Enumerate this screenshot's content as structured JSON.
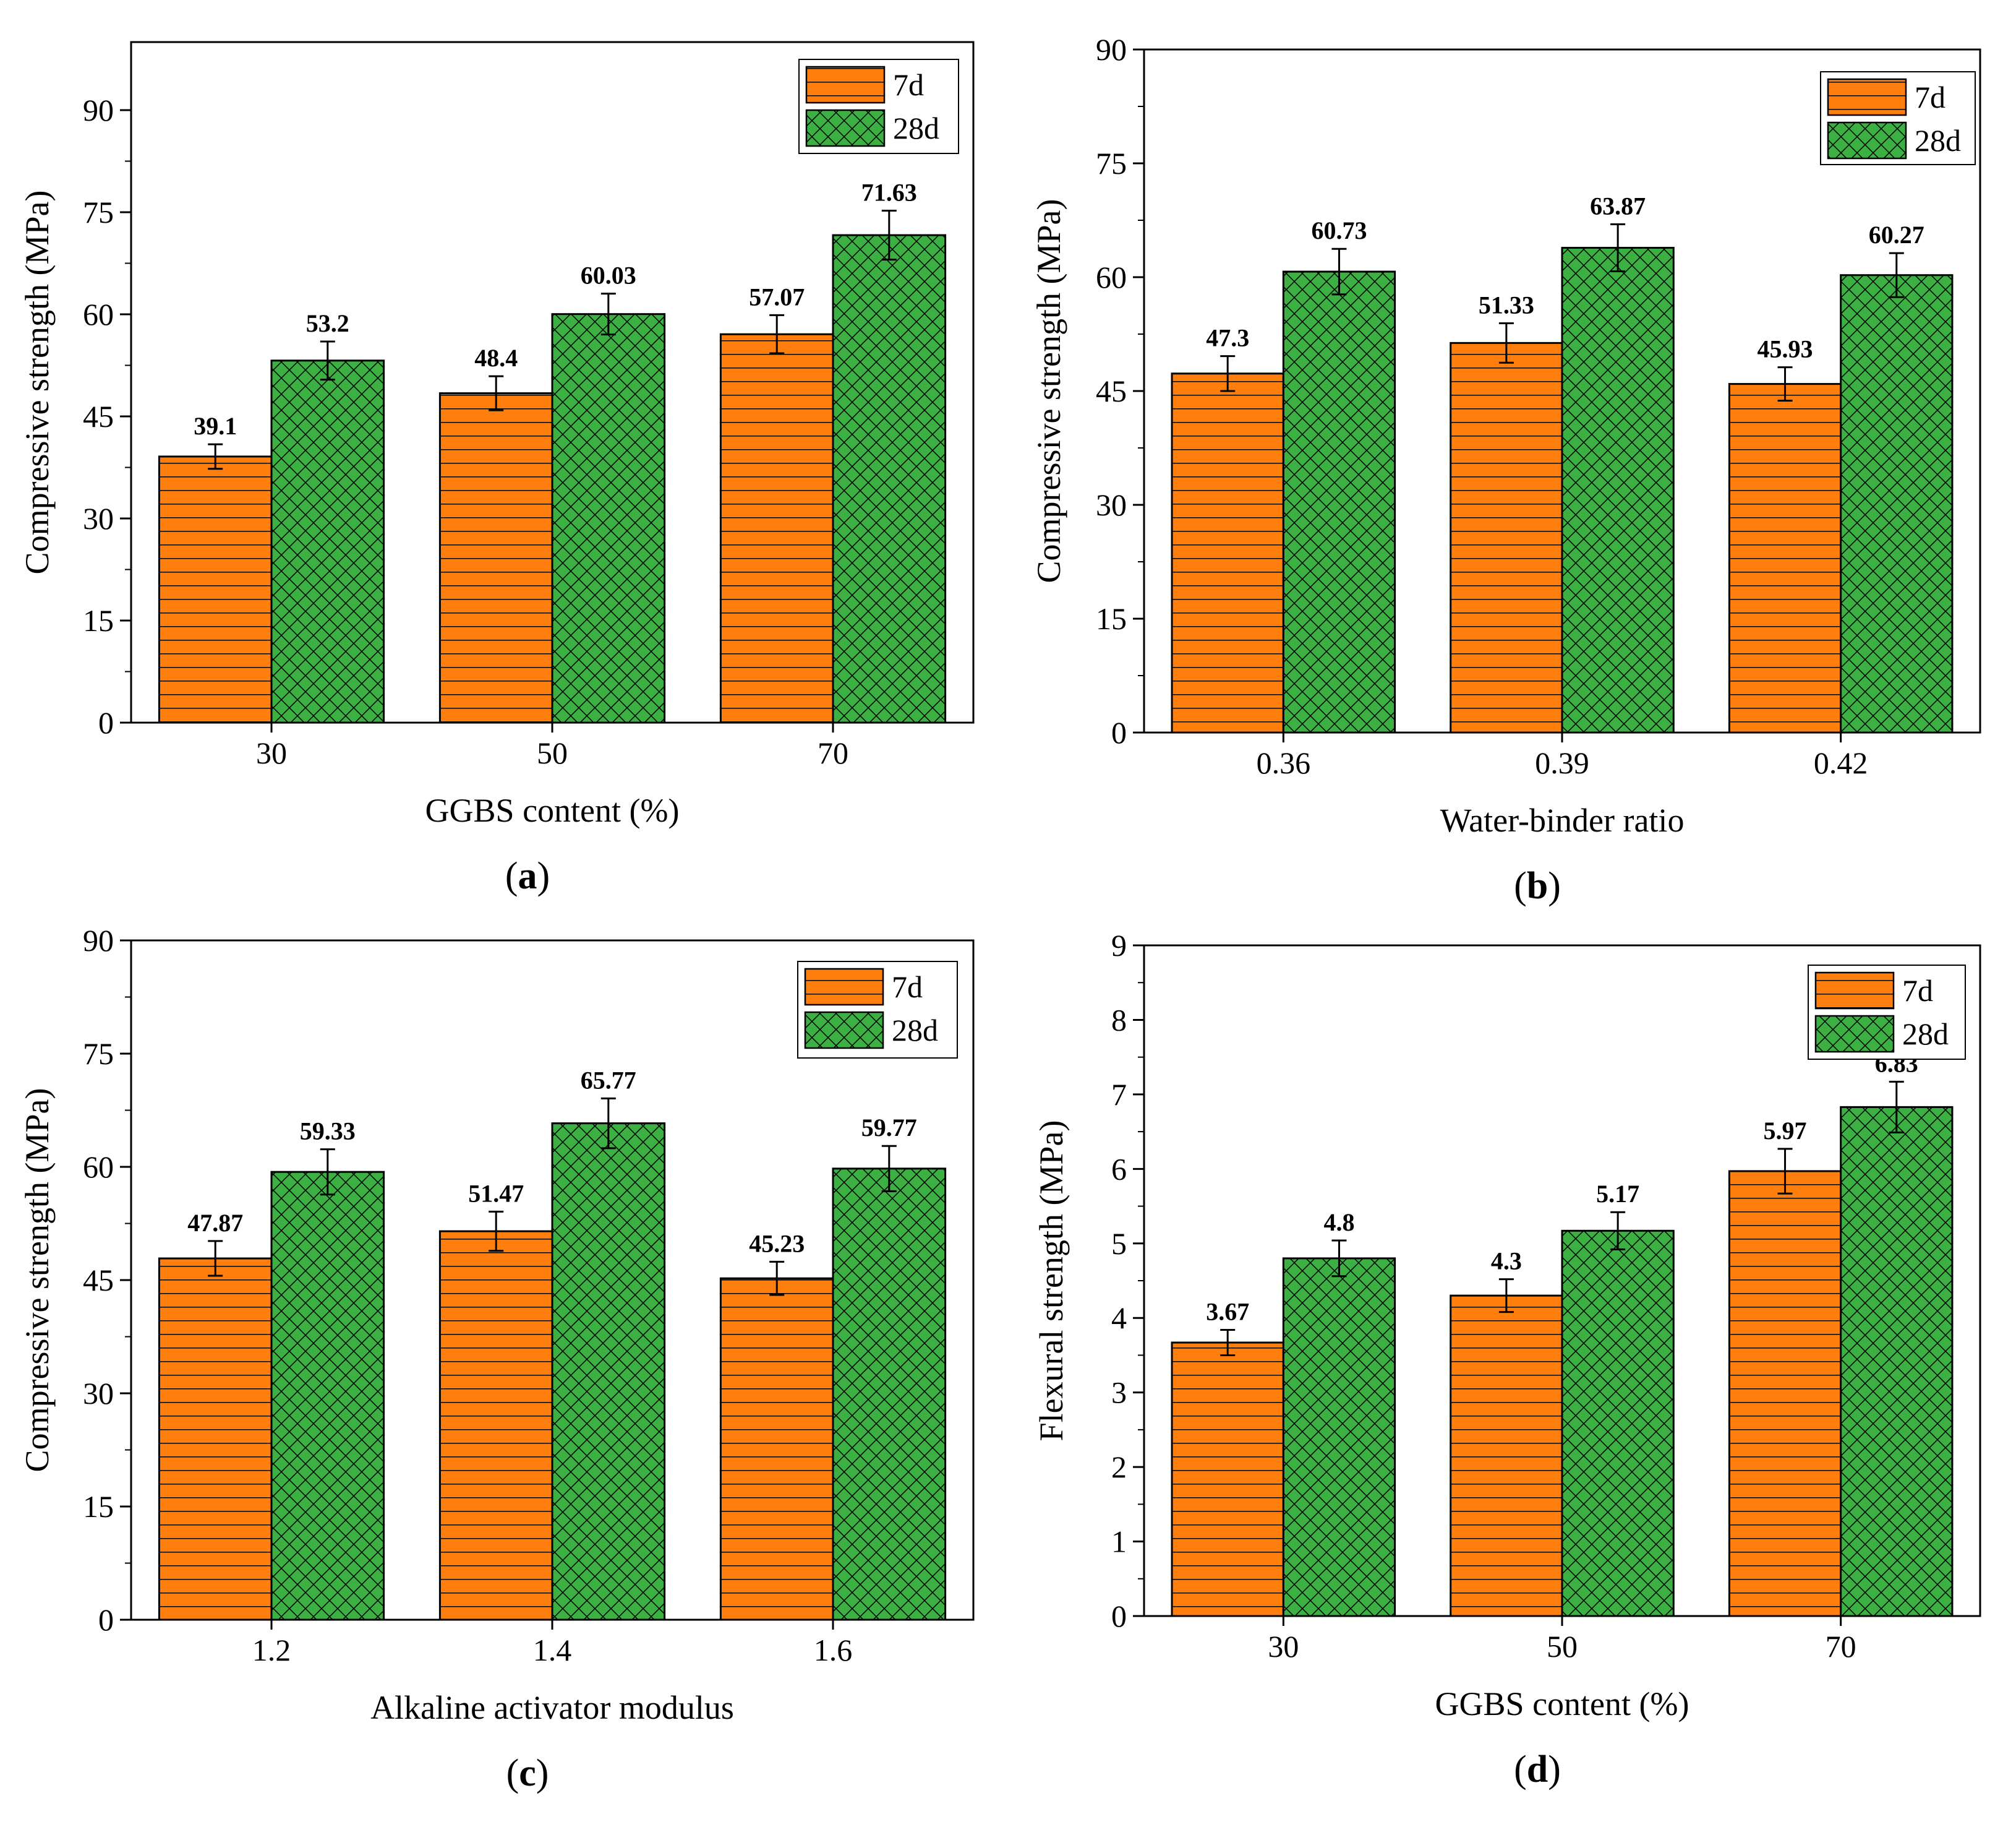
{
  "colors": {
    "seven_day": "#FF7F0E",
    "twenty_eight_day": "#3CB043",
    "axis": "#000000"
  },
  "chart_data": [
    {
      "type": "bar",
      "panel": "(a)",
      "panel_letter": "a",
      "xlabel": "GGBS content (%)",
      "ylabel": "Compressive strength (MPa)",
      "categories": [
        "30",
        "50",
        "70"
      ],
      "ylim": [
        0,
        100
      ],
      "yticks": [
        0,
        15,
        30,
        45,
        60,
        75,
        90
      ],
      "legend_position": "top-right",
      "series": [
        {
          "name": "7d",
          "values": [
            39.1,
            48.4,
            57.07
          ],
          "labels": [
            "39.1",
            "48.4",
            "57.07"
          ],
          "errors": [
            1.8,
            2.5,
            2.8
          ]
        },
        {
          "name": "28d",
          "values": [
            53.2,
            60.03,
            71.63
          ],
          "labels": [
            "53.2",
            "60.03",
            "71.63"
          ],
          "errors": [
            2.8,
            3.0,
            3.6
          ]
        }
      ]
    },
    {
      "type": "bar",
      "panel": "(b)",
      "panel_letter": "b",
      "xlabel": "Water-binder ratio",
      "ylabel": "Compressive strength (MPa)",
      "categories": [
        "0.36",
        "0.39",
        "0.42"
      ],
      "ylim": [
        0,
        90
      ],
      "yticks": [
        0,
        15,
        30,
        45,
        60,
        75,
        90
      ],
      "legend_position": "top-right",
      "series": [
        {
          "name": "7d",
          "values": [
            47.3,
            51.33,
            45.93
          ],
          "labels": [
            "47.3",
            "51.33",
            "45.93"
          ],
          "errors": [
            2.3,
            2.6,
            2.2
          ]
        },
        {
          "name": "28d",
          "values": [
            60.73,
            63.87,
            60.27
          ],
          "labels": [
            "60.73",
            "63.87",
            "60.27"
          ],
          "errors": [
            3.0,
            3.1,
            2.9
          ]
        }
      ]
    },
    {
      "type": "bar",
      "panel": "(c)",
      "panel_letter": "c",
      "xlabel": "Alkaline activator modulus",
      "ylabel": "Compressive strength (MPa)",
      "categories": [
        "1.2",
        "1.4",
        "1.6"
      ],
      "ylim": [
        0,
        90
      ],
      "yticks": [
        0,
        15,
        30,
        45,
        60,
        75,
        90
      ],
      "legend_position": "top-right",
      "series": [
        {
          "name": "7d",
          "values": [
            47.87,
            51.47,
            45.23
          ],
          "labels": [
            "47.87",
            "51.47",
            "45.23"
          ],
          "errors": [
            2.3,
            2.6,
            2.2
          ]
        },
        {
          "name": "28d",
          "values": [
            59.33,
            65.77,
            59.77
          ],
          "labels": [
            "59.33",
            "65.77",
            "59.77"
          ],
          "errors": [
            3.0,
            3.3,
            3.0
          ]
        }
      ]
    },
    {
      "type": "bar",
      "panel": "(d)",
      "panel_letter": "d",
      "xlabel": "GGBS content (%)",
      "ylabel": "Flexural strength (MPa)",
      "categories": [
        "30",
        "50",
        "70"
      ],
      "ylim": [
        0,
        9
      ],
      "yticks": [
        0,
        1,
        2,
        3,
        4,
        5,
        6,
        7,
        8,
        9
      ],
      "legend_position": "top-right",
      "series": [
        {
          "name": "7d",
          "values": [
            3.67,
            4.3,
            5.97
          ],
          "labels": [
            "3.67",
            "4.3",
            "5.97"
          ],
          "errors": [
            0.17,
            0.22,
            0.3
          ]
        },
        {
          "name": "28d",
          "values": [
            4.8,
            5.17,
            6.83
          ],
          "labels": [
            "4.8",
            "5.17",
            "6.83"
          ],
          "errors": [
            0.24,
            0.25,
            0.34
          ]
        }
      ]
    }
  ]
}
